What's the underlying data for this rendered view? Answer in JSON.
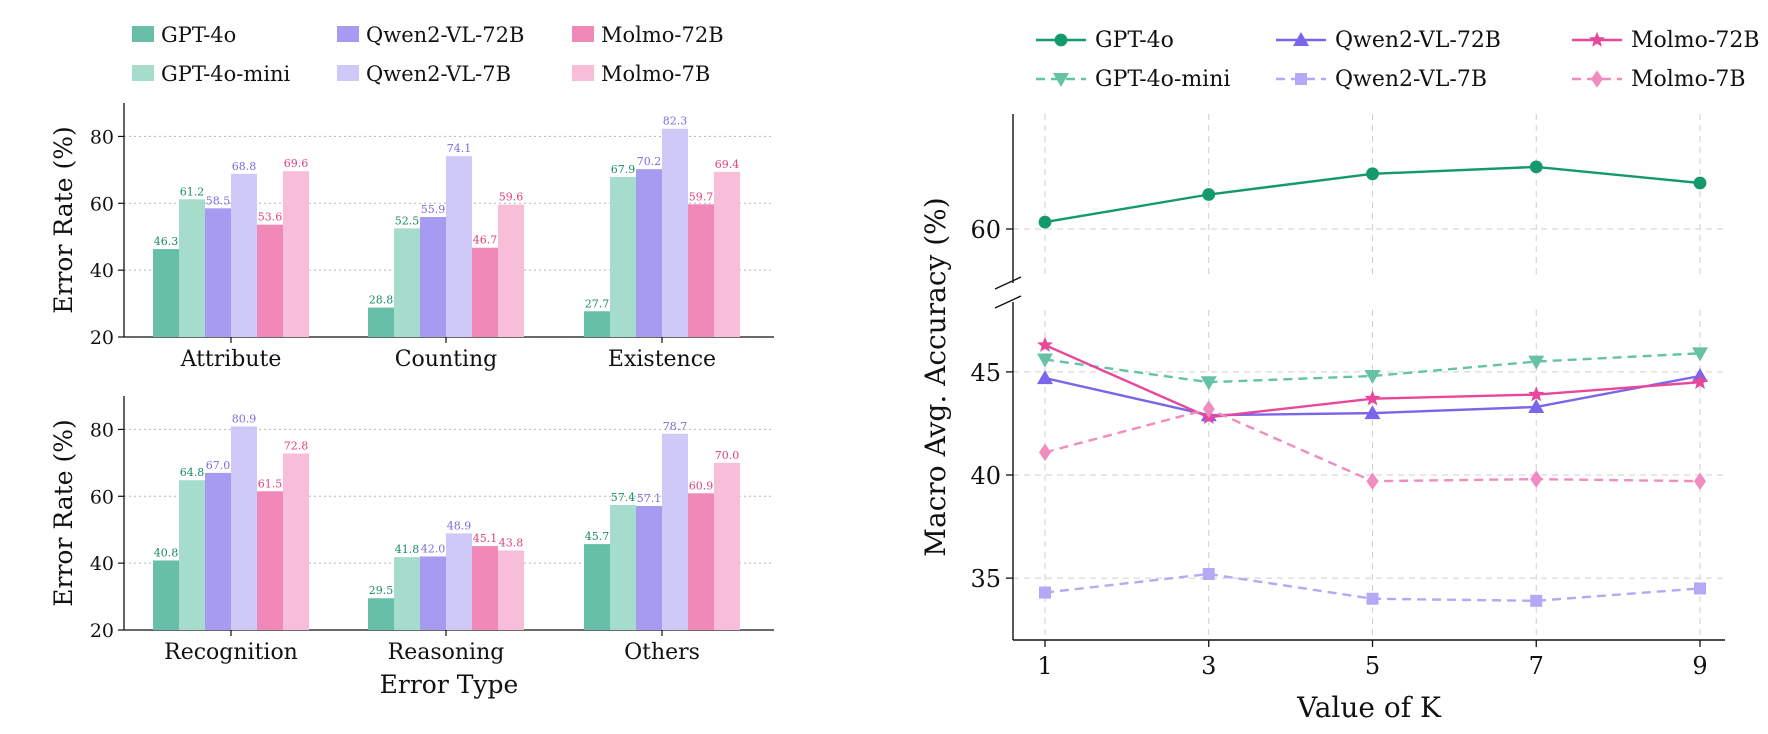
{
  "chart_data": [
    {
      "type": "bar",
      "panel": "top-left",
      "categories": [
        "Attribute",
        "Counting",
        "Existence"
      ],
      "ylabel": "Error Rate (%)",
      "xlabel": "",
      "ylim": [
        20,
        90
      ],
      "yticks": [
        20,
        40,
        60,
        80
      ],
      "grid": "horizontal dotted",
      "series": [
        {
          "name": "GPT-4o",
          "color": "#66bfa6",
          "label_color": "#1a8a6a",
          "values": [
            46.3,
            28.8,
            27.7
          ],
          "labels": [
            "46.3",
            "28.8",
            "27.7"
          ]
        },
        {
          "name": "GPT-4o-mini",
          "color": "#a6dccc",
          "label_color": "#1a8a6a",
          "values": [
            61.2,
            52.5,
            67.9
          ],
          "labels": [
            "61.2",
            "52.5",
            "67.9"
          ]
        },
        {
          "name": "Qwen2-VL-72B",
          "color": "#a69bf0",
          "label_color": "#7b6ce0",
          "values": [
            58.5,
            55.9,
            70.2
          ],
          "labels": [
            "58.5",
            "55.9",
            "70.2"
          ]
        },
        {
          "name": "Qwen2-VL-7B",
          "color": "#cfc9f7",
          "label_color": "#7b6ce0",
          "values": [
            68.8,
            74.1,
            82.3
          ],
          "labels": [
            "68.8",
            "74.1",
            "82.3"
          ]
        },
        {
          "name": "Molmo-72B",
          "color": "#f088b8",
          "label_color": "#e0407f",
          "values": [
            53.6,
            46.7,
            59.7
          ],
          "labels": [
            "53.6",
            "46.7",
            "59.7"
          ]
        },
        {
          "name": "Molmo-7B",
          "color": "#f8bdd8",
          "label_color": "#e0407f",
          "values": [
            69.6,
            59.6,
            69.4
          ],
          "labels": [
            "69.6",
            "59.6",
            "69.4"
          ]
        }
      ]
    },
    {
      "type": "bar",
      "panel": "bottom-left",
      "categories": [
        "Recognition",
        "Reasoning",
        "Others"
      ],
      "ylabel": "Error Rate (%)",
      "xlabel": "Error Type",
      "ylim": [
        20,
        90
      ],
      "yticks": [
        20,
        40,
        60,
        80
      ],
      "grid": "horizontal dotted",
      "series": [
        {
          "name": "GPT-4o",
          "color": "#66bfa6",
          "label_color": "#1a8a6a",
          "values": [
            40.8,
            29.5,
            45.7
          ],
          "labels": [
            "40.8",
            "29.5",
            "45.7"
          ]
        },
        {
          "name": "GPT-4o-mini",
          "color": "#a6dccc",
          "label_color": "#1a8a6a",
          "values": [
            64.8,
            41.8,
            57.4
          ],
          "labels": [
            "64.8",
            "41.8",
            "57.4"
          ]
        },
        {
          "name": "Qwen2-VL-72B",
          "color": "#a69bf0",
          "label_color": "#7b6ce0",
          "values": [
            67.0,
            42.0,
            57.1
          ],
          "labels": [
            "67.0",
            "42.0",
            "57.1"
          ]
        },
        {
          "name": "Qwen2-VL-7B",
          "color": "#cfc9f7",
          "label_color": "#7b6ce0",
          "values": [
            80.9,
            48.9,
            78.7
          ],
          "labels": [
            "80.9",
            "48.9",
            "78.7"
          ]
        },
        {
          "name": "Molmo-72B",
          "color": "#f088b8",
          "label_color": "#e0407f",
          "values": [
            61.5,
            45.1,
            60.9
          ],
          "labels": [
            "61.5",
            "45.1",
            "60.9"
          ]
        },
        {
          "name": "Molmo-7B",
          "color": "#f8bdd8",
          "label_color": "#e0407f",
          "values": [
            72.8,
            43.8,
            70.0
          ],
          "labels": [
            "72.8",
            "43.8",
            "70.0"
          ]
        }
      ]
    },
    {
      "type": "line",
      "panel": "right",
      "x": [
        1,
        3,
        5,
        7,
        9
      ],
      "xlabel": "Value of K",
      "ylabel": "Macro Avg. Accuracy (%)",
      "broken_y_axis": true,
      "upper_ylim": [
        58,
        65
      ],
      "upper_yticks": [
        60
      ],
      "lower_ylim": [
        32,
        48
      ],
      "lower_yticks": [
        35,
        40,
        45
      ],
      "grid": "dashed",
      "legend_placement": "top",
      "series": [
        {
          "name": "GPT-4o",
          "color": "#13996b",
          "linestyle": "solid",
          "marker": "circle",
          "values": [
            60.3,
            61.5,
            62.4,
            62.7,
            62.0
          ]
        },
        {
          "name": "GPT-4o-mini",
          "color": "#66c2a5",
          "linestyle": "dashed",
          "marker": "triangle-down",
          "values": [
            45.6,
            44.5,
            44.8,
            45.5,
            45.9
          ]
        },
        {
          "name": "Qwen2-VL-72B",
          "color": "#7a66ea",
          "linestyle": "solid",
          "marker": "triangle-up",
          "values": [
            44.7,
            42.9,
            43.0,
            43.3,
            44.8
          ]
        },
        {
          "name": "Qwen2-VL-7B",
          "color": "#b4a9f5",
          "linestyle": "dashed",
          "marker": "square",
          "values": [
            34.3,
            35.2,
            34.0,
            33.9,
            34.5
          ]
        },
        {
          "name": "Molmo-72B",
          "color": "#e8479a",
          "linestyle": "solid",
          "marker": "star",
          "values": [
            46.3,
            42.8,
            43.7,
            43.9,
            44.5
          ]
        },
        {
          "name": "Molmo-7B",
          "color": "#f08cbe",
          "linestyle": "dashed",
          "marker": "diamond",
          "values": [
            41.1,
            43.2,
            39.7,
            39.8,
            39.7
          ]
        }
      ]
    }
  ]
}
